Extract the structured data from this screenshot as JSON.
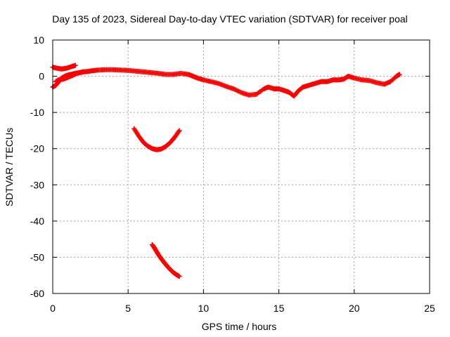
{
  "chart_data": {
    "type": "scatter",
    "title": "Day 135 of 2023, Sidereal Day-to-day VTEC variation (SDTVAR) for receiver poal",
    "xlabel": "GPS time / hours",
    "ylabel": "SDTVAR / TECUs",
    "xlim": [
      0,
      25
    ],
    "ylim": [
      -60,
      10
    ],
    "xticks": [
      0,
      5,
      10,
      15,
      20,
      25
    ],
    "yticks": [
      10,
      0,
      -10,
      -20,
      -30,
      -40,
      -50,
      -60
    ],
    "xtick_labels": [
      "0",
      "5",
      "10",
      "15",
      "20",
      "25"
    ],
    "ytick_labels": [
      "10",
      "0",
      "-10",
      "-20",
      "-30",
      "-40",
      "-50",
      "-60"
    ],
    "grid": true,
    "marker": "+",
    "series_color": "#ff0000",
    "series": [
      {
        "name": "main-trace",
        "points": [
          [
            0.0,
            -3.0
          ],
          [
            0.2,
            -2.5
          ],
          [
            0.4,
            -1.5
          ],
          [
            0.6,
            -0.5
          ],
          [
            0.8,
            0.0
          ],
          [
            1.0,
            0.3
          ],
          [
            1.2,
            0.5
          ],
          [
            1.5,
            0.8
          ],
          [
            1.8,
            1.0
          ],
          [
            2.0,
            1.2
          ],
          [
            2.3,
            1.3
          ],
          [
            2.6,
            1.5
          ],
          [
            3.0,
            1.7
          ],
          [
            3.5,
            1.8
          ],
          [
            4.0,
            1.8
          ],
          [
            4.5,
            1.7
          ],
          [
            5.0,
            1.6
          ],
          [
            5.5,
            1.4
          ],
          [
            6.0,
            1.2
          ],
          [
            6.5,
            1.0
          ],
          [
            7.0,
            0.8
          ],
          [
            7.5,
            0.5
          ],
          [
            8.0,
            0.5
          ],
          [
            8.5,
            0.8
          ],
          [
            9.0,
            0.5
          ],
          [
            9.3,
            0.0
          ],
          [
            9.6,
            -0.5
          ],
          [
            10.0,
            -1.0
          ],
          [
            10.5,
            -1.5
          ],
          [
            11.0,
            -2.0
          ],
          [
            11.5,
            -2.8
          ],
          [
            12.0,
            -3.5
          ],
          [
            12.5,
            -4.5
          ],
          [
            13.0,
            -5.2
          ],
          [
            13.5,
            -5.0
          ],
          [
            14.0,
            -3.5
          ],
          [
            14.3,
            -3.0
          ],
          [
            14.7,
            -3.5
          ],
          [
            15.0,
            -3.5
          ],
          [
            15.4,
            -4.0
          ],
          [
            15.7,
            -4.5
          ],
          [
            16.0,
            -5.5
          ],
          [
            16.3,
            -4.0
          ],
          [
            16.6,
            -3.0
          ],
          [
            17.0,
            -2.5
          ],
          [
            17.4,
            -2.0
          ],
          [
            17.8,
            -1.5
          ],
          [
            18.2,
            -1.5
          ],
          [
            18.6,
            -1.0
          ],
          [
            19.0,
            -1.0
          ],
          [
            19.3,
            -0.8
          ],
          [
            19.6,
            0.0
          ],
          [
            20.0,
            -0.5
          ],
          [
            20.5,
            -1.0
          ],
          [
            21.0,
            -1.2
          ],
          [
            21.5,
            -1.8
          ],
          [
            22.0,
            -2.2
          ],
          [
            22.4,
            -1.5
          ],
          [
            22.8,
            0.0
          ],
          [
            23.0,
            0.5
          ]
        ]
      },
      {
        "name": "early-upper-trace",
        "points": [
          [
            0.0,
            2.5
          ],
          [
            0.3,
            2.2
          ],
          [
            0.6,
            2.0
          ],
          [
            0.9,
            2.2
          ],
          [
            1.2,
            2.6
          ],
          [
            1.5,
            3.0
          ]
        ]
      },
      {
        "name": "early-lower-trace",
        "points": [
          [
            0.2,
            -1.5
          ],
          [
            0.4,
            -1.0
          ],
          [
            0.7,
            -0.8
          ],
          [
            1.0,
            -0.3
          ],
          [
            1.3,
            0.2
          ],
          [
            1.6,
            0.8
          ],
          [
            2.0,
            1.2
          ]
        ]
      },
      {
        "name": "middle-dip-trace",
        "points": [
          [
            5.4,
            -14.5
          ],
          [
            5.7,
            -16.5
          ],
          [
            6.0,
            -18.2
          ],
          [
            6.3,
            -19.3
          ],
          [
            6.6,
            -20.0
          ],
          [
            6.9,
            -20.3
          ],
          [
            7.2,
            -20.1
          ],
          [
            7.5,
            -19.4
          ],
          [
            7.8,
            -18.3
          ],
          [
            8.1,
            -16.8
          ],
          [
            8.4,
            -15.0
          ]
        ]
      },
      {
        "name": "lower-descent-trace",
        "points": [
          [
            6.6,
            -46.5
          ],
          [
            6.8,
            -47.8
          ],
          [
            7.0,
            -49.2
          ],
          [
            7.2,
            -50.4
          ],
          [
            7.4,
            -51.5
          ],
          [
            7.6,
            -52.5
          ],
          [
            7.8,
            -53.4
          ],
          [
            8.0,
            -54.2
          ],
          [
            8.2,
            -54.8
          ],
          [
            8.4,
            -55.3
          ]
        ]
      }
    ]
  }
}
